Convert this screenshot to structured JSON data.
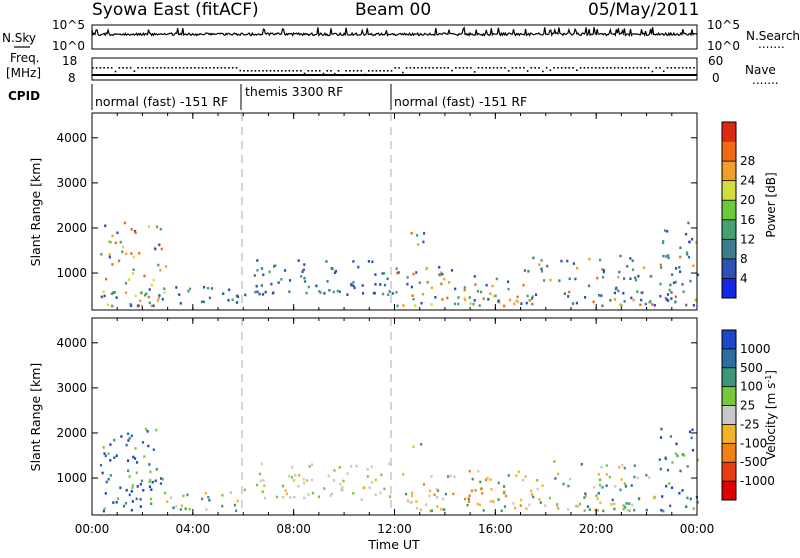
{
  "header": {
    "radar": "Syowa East (fitACF)",
    "beam": "Beam 00",
    "date": "05/May/2011"
  },
  "left_labels": {
    "nsky": "N.Sky",
    "freq": "Freq.",
    "freq_unit": "[MHz]",
    "cpid": "CPID"
  },
  "right_labels": {
    "nsearch": "N.Search",
    "nave": "Nave",
    "dots": "......."
  },
  "noise_axis": {
    "left": [
      "10^5",
      "10^0"
    ],
    "right": [
      "10^5",
      "10^0"
    ]
  },
  "freq_axis": {
    "left": [
      "18",
      "8"
    ],
    "right": [
      "60",
      "0"
    ]
  },
  "cpid_segments": [
    {
      "label": "normal (fast) -151 RF",
      "start": 0,
      "end": 6
    },
    {
      "label": "themis 3300 RF",
      "start": 6,
      "end": 12
    },
    {
      "label": "normal (fast) -151 RF",
      "start": 12,
      "end": 24
    }
  ],
  "chart_data": [
    {
      "type": "heatmap",
      "title": "Power",
      "ylabel": "Slant Range [km]",
      "xlabel": "Time UT",
      "xlim": [
        0,
        24
      ],
      "ylim": [
        180,
        4550
      ],
      "yticks": [
        1000,
        2000,
        3000,
        4000
      ],
      "xticks": [
        "00:00",
        "04:00",
        "08:00",
        "12:00",
        "16:00",
        "20:00",
        "00:00"
      ],
      "colorbar": {
        "label": "Power [dB]",
        "ticks": [
          4,
          8,
          12,
          16,
          20,
          24,
          28
        ],
        "range": [
          0,
          30
        ],
        "colors": [
          "#1428e6",
          "#2e50b4",
          "#3d7a8a",
          "#47a070",
          "#6ec83c",
          "#d2dc3c",
          "#f0a028",
          "#f06a14",
          "#dc2814"
        ]
      },
      "echo_regions": [
        {
          "t0": 0.3,
          "t1": 2.9,
          "r0": 250,
          "r1": 2100,
          "level": "high"
        },
        {
          "t0": 2.9,
          "t1": 5.8,
          "r0": 250,
          "r1": 700,
          "level": "low"
        },
        {
          "t0": 6.0,
          "t1": 11.9,
          "r0": 500,
          "r1": 1300,
          "level": "low"
        },
        {
          "t0": 12.0,
          "t1": 17.5,
          "r0": 250,
          "r1": 1150,
          "level": "high"
        },
        {
          "t0": 12.4,
          "t1": 13.2,
          "r0": 1600,
          "r1": 1900,
          "level": "high"
        },
        {
          "t0": 17.0,
          "t1": 22.5,
          "r0": 250,
          "r1": 1400,
          "level": "mid"
        },
        {
          "t0": 22.5,
          "t1": 24.0,
          "r0": 250,
          "r1": 2100,
          "level": "mid"
        }
      ]
    },
    {
      "type": "heatmap",
      "title": "Velocity",
      "ylabel": "Slant Range [km]",
      "xlabel": "Time UT",
      "xlim": [
        0,
        24
      ],
      "ylim": [
        180,
        4550
      ],
      "yticks": [
        1000,
        2000,
        3000,
        4000
      ],
      "xticks": [
        "00:00",
        "04:00",
        "08:00",
        "12:00",
        "16:00",
        "20:00",
        "00:00"
      ],
      "colorbar": {
        "label": "Velocity [m s^-1]",
        "ticks": [
          "1000",
          "500",
          "100",
          "25",
          "-25",
          "-100",
          "-500",
          "-1000"
        ],
        "colors": [
          "#1e46c8",
          "#2d6ea0",
          "#3c9678",
          "#78c83c",
          "#c8c8c8",
          "#f0b428",
          "#f08214",
          "#e63c14",
          "#dc0000"
        ]
      },
      "echo_regions": [
        {
          "t0": 0.3,
          "t1": 2.9,
          "r0": 250,
          "r1": 2100,
          "level": "positive"
        },
        {
          "t0": 2.9,
          "t1": 5.8,
          "r0": 250,
          "r1": 700,
          "level": "mixed"
        },
        {
          "t0": 6.0,
          "t1": 11.9,
          "r0": 500,
          "r1": 1300,
          "level": "near-zero"
        },
        {
          "t0": 12.0,
          "t1": 17.5,
          "r0": 250,
          "r1": 1150,
          "level": "negative"
        },
        {
          "t0": 12.4,
          "t1": 13.2,
          "r0": 1600,
          "r1": 1900,
          "level": "negative"
        },
        {
          "t0": 17.0,
          "t1": 22.5,
          "r0": 250,
          "r1": 1400,
          "level": "mixed"
        },
        {
          "t0": 22.5,
          "t1": 24.0,
          "r0": 250,
          "r1": 2100,
          "level": "positive"
        }
      ]
    }
  ],
  "axis_title_x": "Time UT"
}
